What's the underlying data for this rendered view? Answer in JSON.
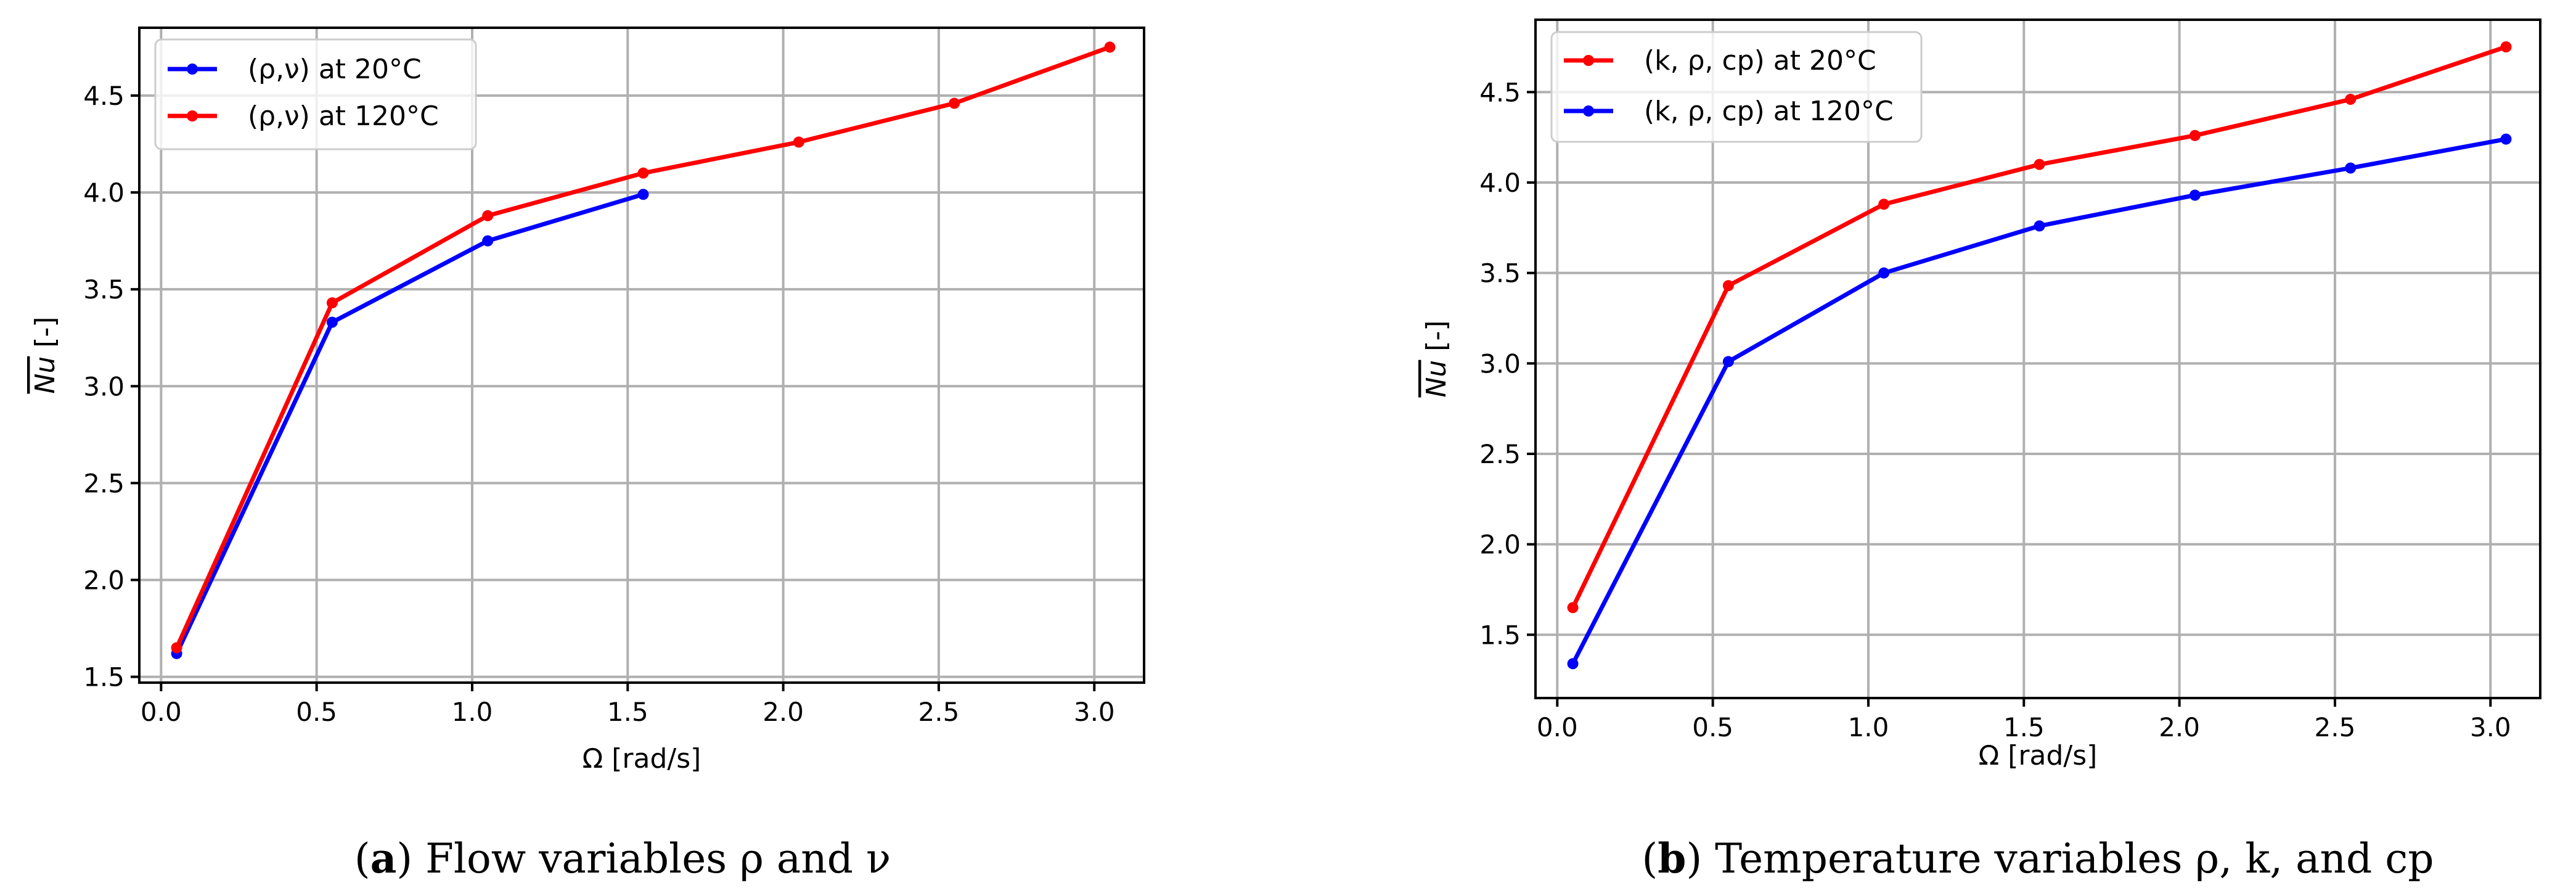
{
  "chart_data": [
    {
      "type": "line",
      "xlabel": "Ω [rad/s]",
      "ylabel": "Nu [-]",
      "xlim": [
        -0.07,
        3.16
      ],
      "ylim": [
        1.47,
        4.85
      ],
      "xticks": [
        0.0,
        0.5,
        1.0,
        1.5,
        2.0,
        2.5,
        3.0
      ],
      "xtick_labels": [
        "0.0",
        "0.5",
        "1.0",
        "1.5",
        "2.0",
        "2.5",
        "3.0"
      ],
      "yticks": [
        1.5,
        2.0,
        2.5,
        3.0,
        3.5,
        4.0,
        4.5
      ],
      "ytick_labels": [
        "1.5",
        "2.0",
        "2.5",
        "3.0",
        "3.5",
        "4.0",
        "4.5"
      ],
      "grid": true,
      "legend_position": "top-left",
      "series": [
        {
          "name": "(ρ,ν) at 20°C",
          "color": "#0000ff",
          "x": [
            0.05,
            0.55,
            1.05,
            1.55
          ],
          "y": [
            1.62,
            3.33,
            3.75,
            3.99
          ]
        },
        {
          "name": "(ρ,ν) at 120°C",
          "color": "#ff0000",
          "x": [
            0.05,
            0.55,
            1.05,
            1.55,
            2.05,
            2.55,
            3.05
          ],
          "y": [
            1.65,
            3.43,
            3.88,
            4.1,
            4.26,
            4.46,
            4.75
          ]
        }
      ],
      "caption": {
        "letter": "a",
        "text": ") Flow variables ρ and ν"
      }
    },
    {
      "type": "line",
      "xlabel": "Ω [rad/s]",
      "ylabel": "Nu [-]",
      "xlim": [
        -0.07,
        3.16
      ],
      "ylim": [
        1.15,
        4.9
      ],
      "xticks": [
        0.0,
        0.5,
        1.0,
        1.5,
        2.0,
        2.5,
        3.0
      ],
      "xtick_labels": [
        "0.0",
        "0.5",
        "1.0",
        "1.5",
        "2.0",
        "2.5",
        "3.0"
      ],
      "yticks": [
        1.5,
        2.0,
        2.5,
        3.0,
        3.5,
        4.0,
        4.5
      ],
      "ytick_labels": [
        "1.5",
        "2.0",
        "2.5",
        "3.0",
        "3.5",
        "4.0",
        "4.5"
      ],
      "grid": true,
      "legend_position": "top-left",
      "series": [
        {
          "name": "(k, ρ, cp) at 20°C",
          "color": "#ff0000",
          "x": [
            0.05,
            0.55,
            1.05,
            1.55,
            2.05,
            2.55,
            3.05
          ],
          "y": [
            1.65,
            3.43,
            3.88,
            4.1,
            4.26,
            4.46,
            4.75
          ]
        },
        {
          "name": "(k, ρ, cp) at 120°C",
          "color": "#0000ff",
          "x": [
            0.05,
            0.55,
            1.05,
            1.55,
            2.05,
            2.55,
            3.05
          ],
          "y": [
            1.34,
            3.01,
            3.5,
            3.76,
            3.93,
            4.08,
            4.24
          ]
        }
      ],
      "caption": {
        "letter": "b",
        "text": ") Temperature variables ρ, k, and cp"
      }
    }
  ]
}
